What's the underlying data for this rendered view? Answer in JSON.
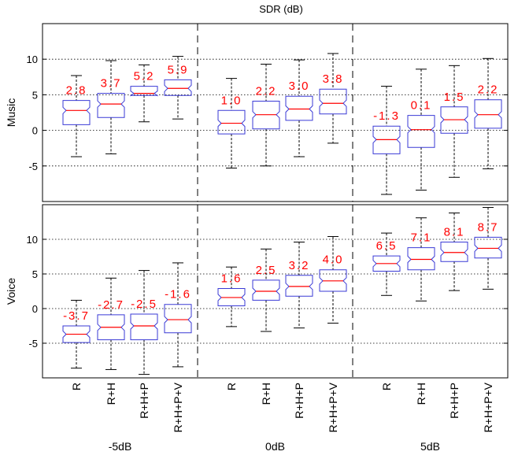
{
  "chart_data": {
    "type": "boxplot",
    "title": "SDR (dB)",
    "conditions": [
      "R",
      "R+H",
      "R+H+P",
      "R+H+P+V"
    ],
    "groups": [
      "-5dB",
      "0dB",
      "5dB"
    ],
    "colors": {
      "box": "#3a3ad6",
      "median": "#ff0000",
      "label": "#ff0000",
      "axis": "#000000"
    },
    "grid": "dotted horizontal",
    "panels": [
      {
        "ylabel": "Music",
        "ylim": [
          -10,
          15
        ],
        "yticks": [
          -5,
          0,
          5,
          10
        ],
        "groups": [
          {
            "name": "-5dB",
            "boxes": [
              {
                "condition": "R",
                "label": "2.8",
                "median": 2.8,
                "q1": 0.8,
                "q3": 4.2,
                "whisker_low": -3.7,
                "whisker_high": 7.7
              },
              {
                "condition": "R+H",
                "label": "3.7",
                "median": 3.7,
                "q1": 1.8,
                "q3": 5.2,
                "whisker_low": -3.3,
                "whisker_high": 9.8
              },
              {
                "condition": "R+H+P",
                "label": "5.2",
                "median": 5.2,
                "q1": 4.9,
                "q3": 6.2,
                "whisker_low": 1.2,
                "whisker_high": 9.2
              },
              {
                "condition": "R+H+P+V",
                "label": "5.9",
                "median": 5.9,
                "q1": 4.9,
                "q3": 7.1,
                "whisker_low": 1.6,
                "whisker_high": 10.4
              }
            ]
          },
          {
            "name": "0dB",
            "boxes": [
              {
                "condition": "R",
                "label": "1.0",
                "median": 1.0,
                "q1": -0.5,
                "q3": 2.8,
                "whisker_low": -5.3,
                "whisker_high": 7.3
              },
              {
                "condition": "R+H",
                "label": "2.2",
                "median": 2.2,
                "q1": 0.2,
                "q3": 4.1,
                "whisker_low": -5.0,
                "whisker_high": 9.3
              },
              {
                "condition": "R+H+P",
                "label": "3.0",
                "median": 3.0,
                "q1": 1.4,
                "q3": 4.8,
                "whisker_low": -3.7,
                "whisker_high": 9.9
              },
              {
                "condition": "R+H+P+V",
                "label": "3.8",
                "median": 3.8,
                "q1": 2.3,
                "q3": 5.8,
                "whisker_low": -1.8,
                "whisker_high": 10.8
              }
            ]
          },
          {
            "name": "5dB",
            "boxes": [
              {
                "condition": "R",
                "label": "-1.3",
                "median": -1.3,
                "q1": -3.3,
                "q3": 0.6,
                "whisker_low": -9.0,
                "whisker_high": 6.2
              },
              {
                "condition": "R+H",
                "label": "0.1",
                "median": 0.1,
                "q1": -2.4,
                "q3": 2.1,
                "whisker_low": -8.4,
                "whisker_high": 8.6
              },
              {
                "condition": "R+H+P",
                "label": "1.5",
                "median": 1.5,
                "q1": -0.4,
                "q3": 3.3,
                "whisker_low": -6.6,
                "whisker_high": 9.1
              },
              {
                "condition": "R+H+P+V",
                "label": "2.2",
                "median": 2.2,
                "q1": 0.3,
                "q3": 4.3,
                "whisker_low": -5.4,
                "whisker_high": 10.1
              }
            ]
          }
        ]
      },
      {
        "ylabel": "Voice",
        "ylim": [
          -10,
          15
        ],
        "yticks": [
          -5,
          0,
          5,
          10
        ],
        "groups": [
          {
            "name": "-5dB",
            "boxes": [
              {
                "condition": "R",
                "label": "-3.7",
                "median": -3.7,
                "q1": -4.9,
                "q3": -2.5,
                "whisker_low": -8.6,
                "whisker_high": 1.2
              },
              {
                "condition": "R+H",
                "label": "-2.7",
                "median": -2.7,
                "q1": -4.5,
                "q3": -0.9,
                "whisker_low": -8.8,
                "whisker_high": 4.4
              },
              {
                "condition": "R+H+P",
                "label": "-2.5",
                "median": -2.5,
                "q1": -4.5,
                "q3": -0.8,
                "whisker_low": -9.5,
                "whisker_high": 5.5
              },
              {
                "condition": "R+H+P+V",
                "label": "-1.6",
                "median": -1.6,
                "q1": -3.5,
                "q3": 0.6,
                "whisker_low": -8.4,
                "whisker_high": 6.6
              }
            ]
          },
          {
            "name": "0dB",
            "boxes": [
              {
                "condition": "R",
                "label": "1.6",
                "median": 1.6,
                "q1": 0.4,
                "q3": 2.9,
                "whisker_low": -2.6,
                "whisker_high": 6.0
              },
              {
                "condition": "R+H",
                "label": "2.5",
                "median": 2.5,
                "q1": 1.2,
                "q3": 4.1,
                "whisker_low": -3.3,
                "whisker_high": 8.6
              },
              {
                "condition": "R+H+P",
                "label": "3.2",
                "median": 3.2,
                "q1": 1.8,
                "q3": 4.8,
                "whisker_low": -2.8,
                "whisker_high": 9.6
              },
              {
                "condition": "R+H+P+V",
                "label": "4.0",
                "median": 4.0,
                "q1": 2.5,
                "q3": 5.6,
                "whisker_low": -2.1,
                "whisker_high": 10.4
              }
            ]
          },
          {
            "name": "5dB",
            "boxes": [
              {
                "condition": "R",
                "label": "6.5",
                "median": 6.5,
                "q1": 5.4,
                "q3": 7.6,
                "whisker_low": 1.9,
                "whisker_high": 10.9
              },
              {
                "condition": "R+H",
                "label": "7.1",
                "median": 7.1,
                "q1": 5.6,
                "q3": 8.8,
                "whisker_low": 1.1,
                "whisker_high": 13.1
              },
              {
                "condition": "R+H+P",
                "label": "8.1",
                "median": 8.1,
                "q1": 6.8,
                "q3": 9.6,
                "whisker_low": 2.6,
                "whisker_high": 13.8
              },
              {
                "condition": "R+H+P+V",
                "label": "8.7",
                "median": 8.7,
                "q1": 7.3,
                "q3": 10.3,
                "whisker_low": 2.8,
                "whisker_high": 14.6
              }
            ]
          }
        ]
      }
    ]
  }
}
